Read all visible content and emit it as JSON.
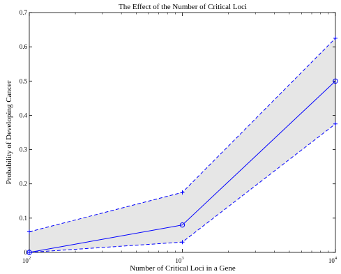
{
  "chart_data": {
    "type": "line",
    "title": "The Effect of the Number of Critical Loci",
    "xlabel": "Number of Critical Loci in a Gene",
    "ylabel": "Probability of Developing Cancer",
    "xscale": "log",
    "xlim": [
      100,
      10000
    ],
    "ylim": [
      0,
      0.7
    ],
    "x": [
      100,
      1000,
      10000
    ],
    "x_tick_labels": [
      {
        "base": "10",
        "exp": "2"
      },
      {
        "base": "10",
        "exp": "3"
      },
      {
        "base": "10",
        "exp": "4"
      }
    ],
    "y_tick_labels": [
      "0",
      "0.1",
      "0.2",
      "0.3",
      "0.4",
      "0.5",
      "0.6",
      "0.7"
    ],
    "y_ticks": [
      0,
      0.1,
      0.2,
      0.3,
      0.4,
      0.5,
      0.6,
      0.7
    ],
    "grid": false,
    "shaded_band": {
      "color": "#e6e6e6",
      "between": [
        "upper",
        "lower"
      ]
    },
    "series": [
      {
        "id": "mean",
        "values": [
          0.0,
          0.08,
          0.5
        ],
        "style": "solid",
        "marker": "circle",
        "color": "#0000ff"
      },
      {
        "id": "upper",
        "values": [
          0.06,
          0.175,
          0.625
        ],
        "style": "dashed",
        "marker": "plus",
        "color": "#0000ff"
      },
      {
        "id": "lower",
        "values": [
          0.0,
          0.03,
          0.375
        ],
        "style": "dashed",
        "marker": "plus",
        "color": "#0000ff"
      }
    ]
  }
}
